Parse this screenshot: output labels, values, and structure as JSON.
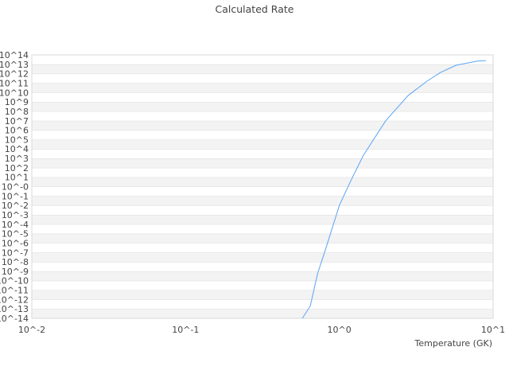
{
  "chart_data": {
    "type": "line",
    "title": "Calculated Rate",
    "xlabel": "Temperature (GK)",
    "ylabel": "",
    "x_scale": "log",
    "y_scale": "log",
    "xlim": [
      0.01,
      10
    ],
    "ylim": [
      1e-14,
      100000000000000.0
    ],
    "x_ticks": [
      {
        "v": -2,
        "label": "10^-2"
      },
      {
        "v": -1,
        "label": "10^-1"
      },
      {
        "v": 0,
        "label": "10^0"
      },
      {
        "v": 1,
        "label": "10^1"
      }
    ],
    "y_ticks": [
      "10^-14",
      "10^-13",
      "10^-12",
      "10^-11",
      "10^-10",
      "10^-9",
      "10^-8",
      "10^-7",
      "10^-6",
      "10^-5",
      "10^-4",
      "10^-3",
      "10^-2",
      "10^-1",
      "10^-0",
      "10^1",
      "10^2",
      "10^3",
      "10^4",
      "10^5",
      "10^6",
      "10^7",
      "10^8",
      "10^9",
      "10^10",
      "10^11",
      "10^12",
      "10^13",
      "10^14"
    ],
    "grid": true,
    "line_color": "#5ba3f5",
    "series": [
      {
        "x": [
          0.574,
          0.647,
          0.723,
          0.803,
          1.0,
          1.17,
          1.43,
          2.0,
          2.81,
          3.71,
          4.52,
          5.74,
          7.9,
          9.0
        ],
        "y": [
          1e-14,
          2e-13,
          6e-10,
          1.1e-07,
          0.01,
          2.5,
          2000.0,
          10000000.0,
          5000000000.0,
          160000000000.0,
          1300000000000.0,
          8000000000000.0,
          22000000000000.0,
          25000000000000.0
        ]
      }
    ]
  }
}
